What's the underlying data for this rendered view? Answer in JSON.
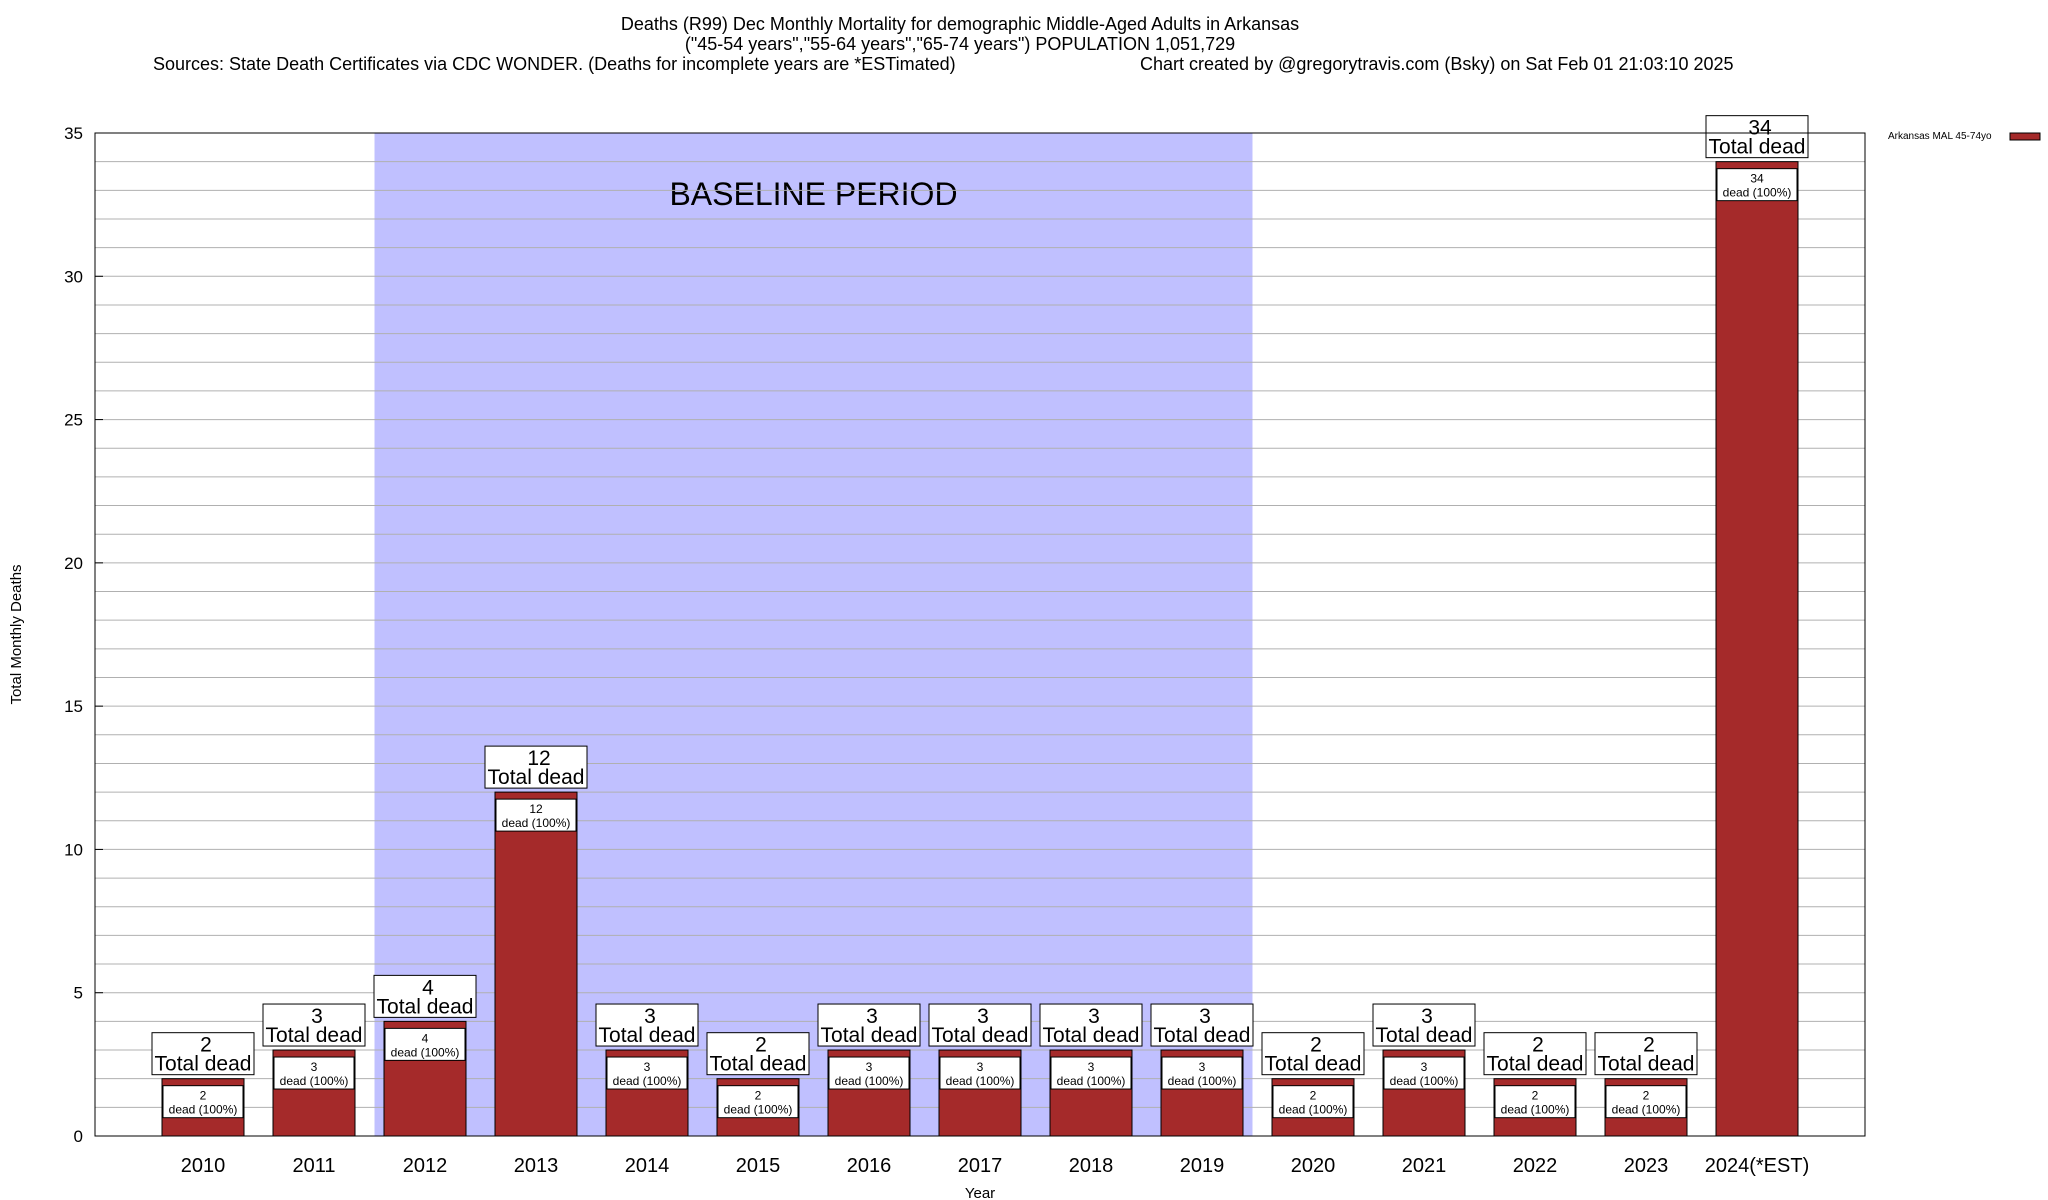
{
  "chart_data": {
    "type": "bar",
    "title_lines": [
      "Deaths (R99) Dec Monthly Mortality for demographic Middle-Aged Adults in Arkansas",
      "(\"45-54 years\",\"55-64 years\",\"65-74 years\") POPULATION 1,051,729"
    ],
    "sources_text": "Sources: State Death Certificates via CDC WONDER. (Deaths for incomplete years are *ESTimated)",
    "credit_text": "Chart created by @gregorytravis.com (Bsky) on Sat Feb 01 21:03:10 2025",
    "xlabel": "Year",
    "ylabel": "Total Monthly Deaths",
    "ylim": [
      0,
      35
    ],
    "ytick_values": [
      0,
      5,
      10,
      15,
      20,
      25,
      30,
      35
    ],
    "categories": [
      "2010",
      "2011",
      "2012",
      "2013",
      "2014",
      "2015",
      "2016",
      "2017",
      "2018",
      "2019",
      "2020",
      "2021",
      "2022",
      "2023",
      "2024(*EST)"
    ],
    "series": [
      {
        "name": "Arkansas MAL 45-74yo",
        "color": "#a52a2a",
        "values": [
          2,
          3,
          4,
          12,
          3,
          2,
          3,
          3,
          3,
          3,
          2,
          3,
          2,
          2,
          34
        ]
      }
    ],
    "total_label_suffix": "Total dead",
    "inner_label_suffix": "dead (100%)",
    "baseline": {
      "label": "BASELINE PERIOD",
      "start_category": "2012",
      "end_category": "2019",
      "color": "#c0c0ff"
    },
    "grid": true,
    "legend_position": "top-right"
  }
}
